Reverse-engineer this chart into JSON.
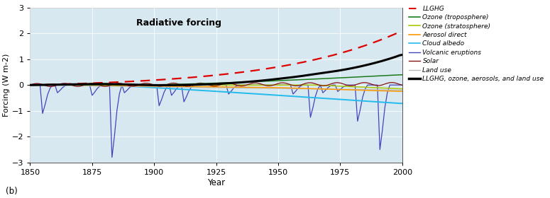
{
  "title": "Radiative forcing",
  "xlabel": "Year",
  "ylabel": "Forcing (W m-2)",
  "xlim": [
    1850,
    2000
  ],
  "ylim": [
    -3,
    3
  ],
  "xticks": [
    1850,
    1875,
    1900,
    1925,
    1950,
    1975,
    2000
  ],
  "yticks": [
    -3,
    -2,
    -1,
    0,
    1,
    2,
    3
  ],
  "background_color": "#d8e8f0",
  "label_b": "(b)",
  "series": {
    "LLGHG": {
      "color": "#dd0000",
      "linestyle": "dashed",
      "linewidth": 1.6,
      "zorder": 5
    },
    "Ozone (troposphere)": {
      "color": "#1a7a1a",
      "linestyle": "solid",
      "linewidth": 1.1,
      "zorder": 4
    },
    "Ozone (stratosphere)": {
      "color": "#aacc00",
      "linestyle": "solid",
      "linewidth": 1.1,
      "zorder": 4
    },
    "Aerosol direct": {
      "color": "#ff9900",
      "linestyle": "solid",
      "linewidth": 1.1,
      "zorder": 4
    },
    "Cloud albedo": {
      "color": "#22bbee",
      "linestyle": "solid",
      "linewidth": 1.4,
      "zorder": 4
    },
    "Volcanic eruptions": {
      "color": "#4444bb",
      "linestyle": "solid",
      "linewidth": 0.9,
      "zorder": 3
    },
    "Solar": {
      "color": "#881111",
      "linestyle": "solid",
      "linewidth": 0.9,
      "zorder": 4
    },
    "Land use": {
      "color": "#bbbbbb",
      "linestyle": "solid",
      "linewidth": 1.0,
      "zorder": 4
    },
    "LLGHG, ozone, aerosols, and land use": {
      "color": "#000000",
      "linestyle": "solid",
      "linewidth": 2.2,
      "zorder": 6
    }
  }
}
